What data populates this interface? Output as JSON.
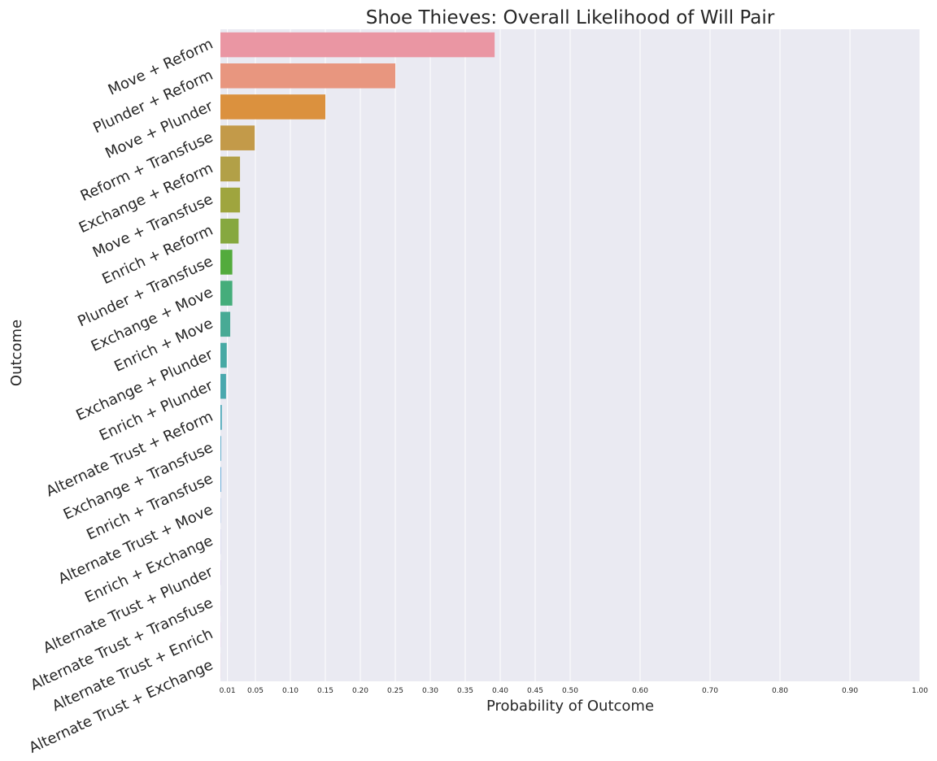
{
  "chart_data": {
    "type": "bar",
    "orientation": "horizontal",
    "title": "Shoe Thieves: Overall Likelihood of Will Pair",
    "xlabel": "Probability of Outcome",
    "ylabel": "Outcome",
    "xlim": [
      0,
      1.0
    ],
    "xticks": [
      0.01,
      0.05,
      0.1,
      0.15,
      0.2,
      0.25,
      0.3,
      0.35,
      0.4,
      0.45,
      0.5,
      0.6,
      0.7,
      0.8,
      0.9,
      1.0
    ],
    "xtick_labels": [
      "0.01",
      "0.05",
      "0.10",
      "0.15",
      "0.20",
      "0.25",
      "0.30",
      "0.35",
      "0.40",
      "0.45",
      "0.50",
      "0.60",
      "0.70",
      "0.80",
      "0.90",
      "1.00"
    ],
    "grid": true,
    "categories": [
      "Move + Reform",
      "Plunder + Reform",
      "Move + Plunder",
      "Reform + Transfuse",
      "Exchange + Reform",
      "Move + Transfuse",
      "Enrich + Reform",
      "Plunder + Transfuse",
      "Exchange + Move",
      "Enrich + Move",
      "Exchange + Plunder",
      "Enrich + Plunder",
      "Alternate Trust + Reform",
      "Exchange + Transfuse",
      "Enrich + Transfuse",
      "Alternate Trust + Move",
      "Enrich + Exchange",
      "Alternate Trust + Plunder",
      "Alternate Trust + Transfuse",
      "Alternate Trust + Enrich",
      "Alternate Trust + Exchange"
    ],
    "values": [
      0.392,
      0.25,
      0.15,
      0.049,
      0.028,
      0.028,
      0.026,
      0.017,
      0.017,
      0.014,
      0.009,
      0.008,
      0.002,
      0.001,
      0.001,
      0.0003,
      0.0002,
      0.0002,
      0.0001,
      0.0001,
      0.0001
    ],
    "colors": [
      "#ea96a3",
      "#e8967f",
      "#db913e",
      "#c39a49",
      "#b2a047",
      "#9fa53e",
      "#86a83f",
      "#53ab3d",
      "#45ad7b",
      "#48aa95",
      "#47a9a4",
      "#49a8ae",
      "#4ba7b8",
      "#4fa5c6",
      "#57a2d3",
      "#6d9be3",
      "#9393ea",
      "#b68ae9",
      "#d183e6",
      "#e47ed9",
      "#e886bd"
    ],
    "background": "#eaeaf2",
    "gridline_color": "#ffffff"
  }
}
